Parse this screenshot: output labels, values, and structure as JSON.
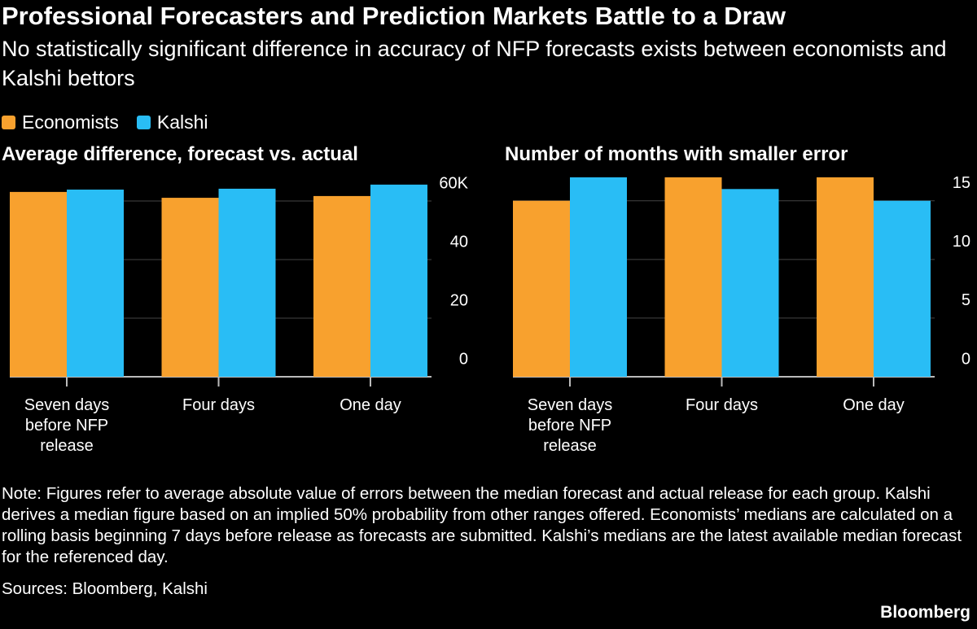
{
  "title": "Professional Forecasters and Prediction Markets Battle to a Draw",
  "subtitle": "No statistically significant difference in accuracy of NFP forecasts exists between economists and Kalshi bettors",
  "chart_data": [
    {
      "type": "bar",
      "title": "Average difference, forecast vs. actual",
      "categories": [
        "Seven days before NFP release",
        "Four days",
        "One day"
      ],
      "series": [
        {
          "name": "Economists",
          "color": "#f8a12e",
          "values": [
            63.1,
            61.1,
            61.7
          ]
        },
        {
          "name": "Kalshi",
          "color": "#29bdf5",
          "values": [
            63.9,
            64.2,
            65.6
          ]
        }
      ],
      "ylim": [
        0,
        68.9
      ],
      "yticks": [
        0,
        20,
        40,
        {
          "value": 60,
          "label": "60K"
        }
      ],
      "grid": true
    },
    {
      "type": "bar",
      "title": "Number of months with smaller error",
      "categories": [
        "Seven days before NFP release",
        "Four days",
        "One day"
      ],
      "series": [
        {
          "color": "#f8a12e",
          "values": [
            15,
            17,
            17
          ]
        },
        {
          "color": "#29bdf5",
          "values": [
            17,
            16,
            15
          ]
        }
      ],
      "ylim": [
        0,
        17.2
      ],
      "yticks": [
        0,
        5,
        10,
        15
      ],
      "grid": true
    }
  ],
  "note": "Note: Figures refer to average absolute value of errors between the median forecast and actual release for each group. Kalshi derives a median figure based on an implied 50% probability from other ranges offered. Economists’ medians are calculated on a rolling basis beginning 7 days before release as forecasts are submitted. Kalshi’s medians are the latest available median forecast for the referenced day.",
  "source": "Sources: Bloomberg, Kalshi",
  "brand": "Bloomberg"
}
